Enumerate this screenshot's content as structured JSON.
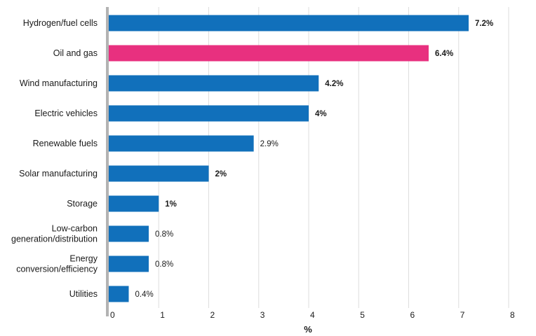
{
  "chart_data": {
    "type": "bar",
    "orientation": "horizontal",
    "categories": [
      "Hydrogen/fuel cells",
      "Oil and gas",
      "Wind manufacturing",
      "Electric vehicles",
      "Renewable fuels",
      "Solar manufacturing",
      "Storage",
      "Low-carbon generation/distribution",
      "Energy conversion/efficiency",
      "Utilities"
    ],
    "category_lines": [
      [
        "Hydrogen/fuel cells"
      ],
      [
        "Oil and gas"
      ],
      [
        "Wind manufacturing"
      ],
      [
        "Electric vehicles"
      ],
      [
        "Renewable fuels"
      ],
      [
        "Solar manufacturing"
      ],
      [
        "Storage"
      ],
      [
        "Low-carbon",
        "generation/distribution"
      ],
      [
        "Energy",
        "conversion/efficiency"
      ],
      [
        "Utilities"
      ]
    ],
    "values": [
      7.2,
      6.4,
      4.2,
      4.0,
      2.9,
      2.0,
      1.0,
      0.8,
      0.8,
      0.4
    ],
    "value_labels": [
      "7.2%",
      "6.4%",
      "4.2%",
      "4%",
      "2.9%",
      "2%",
      "1%",
      "0.8%",
      "0.8%",
      "0.4%"
    ],
    "value_label_bold": [
      true,
      true,
      true,
      true,
      false,
      true,
      true,
      false,
      false,
      false
    ],
    "bar_colors": [
      "#1170bb",
      "#e8307f",
      "#1170bb",
      "#1170bb",
      "#1170bb",
      "#1170bb",
      "#1170bb",
      "#1170bb",
      "#1170bb",
      "#1170bb"
    ],
    "xlim": [
      0,
      8
    ],
    "x_ticks": [
      "0",
      "1",
      "2",
      "3",
      "4",
      "5",
      "6",
      "7",
      "8"
    ],
    "xlabel": "%",
    "grid": true,
    "colors": {
      "primary": "#1170bb",
      "highlight": "#e8307f",
      "grid": "#dddddd",
      "axis": "#b3b3b3"
    }
  }
}
